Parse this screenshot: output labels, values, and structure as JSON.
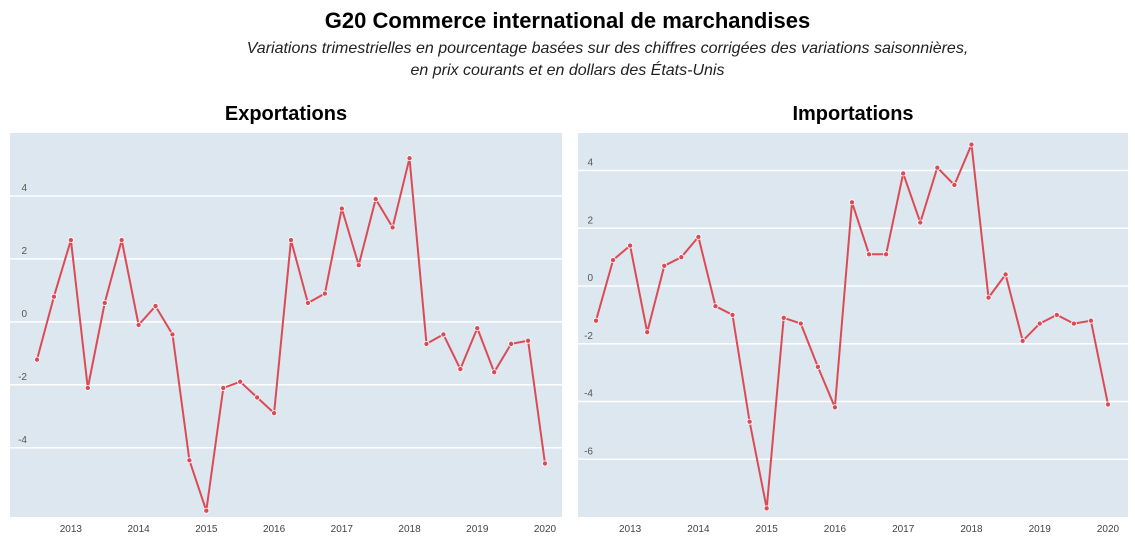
{
  "header": {
    "title": "G20 Commerce international de marchandises",
    "subtitle_line1": "Variations trimestrielles en pourcentage basées sur des chiffres corrigées des variations saisonnières,",
    "subtitle_line2": "en prix courants et en dollars des États-Unis"
  },
  "colors": {
    "plot_bg": "#dde7ef",
    "line": "#dc4b55",
    "grid": "#ffffff"
  },
  "chart_data": [
    {
      "type": "line",
      "title": "Exportations",
      "x_tick_labels": [
        "2013",
        "2014",
        "2015",
        "2016",
        "2017",
        "2018",
        "2019",
        "2020"
      ],
      "y_tick_labels": [
        "4",
        "2",
        "0",
        "-2",
        "-4"
      ],
      "ylim": [
        -6.2,
        6.0
      ],
      "grid": true,
      "series": [
        {
          "values": [
            -1.2,
            0.8,
            2.6,
            -2.1,
            0.6,
            2.6,
            -0.1,
            0.5,
            -0.4,
            -4.4,
            -6.0,
            -2.1,
            -1.9,
            -2.4,
            -2.9,
            2.6,
            0.6,
            0.9,
            3.6,
            1.8,
            3.9,
            3.0,
            5.2,
            -0.7,
            -0.4,
            -1.5,
            -0.2,
            -1.6,
            -0.7,
            -0.6,
            -4.5
          ]
        }
      ]
    },
    {
      "type": "line",
      "title": "Importations",
      "x_tick_labels": [
        "2013",
        "2014",
        "2015",
        "2016",
        "2017",
        "2018",
        "2019",
        "2020"
      ],
      "y_tick_labels": [
        "4",
        "2",
        "0",
        "-2",
        "-4",
        "-6"
      ],
      "ylim": [
        -8.0,
        5.3
      ],
      "grid": true,
      "series": [
        {
          "values": [
            -1.2,
            0.9,
            1.4,
            -1.6,
            0.7,
            1.0,
            1.7,
            -0.7,
            -1.0,
            -4.7,
            -7.7,
            -1.1,
            -1.3,
            -2.8,
            -4.2,
            2.9,
            1.1,
            1.1,
            3.9,
            2.2,
            4.1,
            3.5,
            4.9,
            -0.4,
            0.4,
            -1.9,
            -1.3,
            -1.0,
            -1.3,
            -1.2,
            -4.1
          ]
        }
      ]
    }
  ]
}
